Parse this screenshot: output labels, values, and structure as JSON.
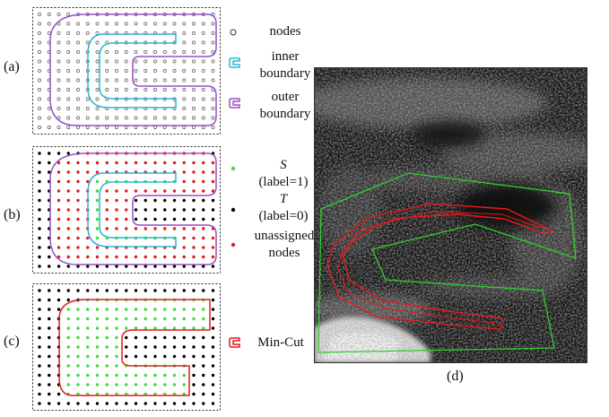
{
  "panels": {
    "a": "(a)",
    "b": "(b)",
    "c": "(c)",
    "d": "(d)"
  },
  "legend_a": {
    "nodes": "nodes",
    "inner_1": "inner",
    "inner_2": "boundary",
    "outer_1": "outer",
    "outer_2": "boundary"
  },
  "legend_b": {
    "s_symbol": "S",
    "s_label": "(label=1)",
    "t_symbol": "T",
    "t_label": "(label=0)",
    "unassigned_1": "unassigned",
    "unassigned_2": "nodes"
  },
  "legend_c": {
    "mincut": "Min-Cut"
  },
  "colors": {
    "inner_boundary": "#2bb5d6",
    "outer_boundary": "#9b4fc4",
    "source_nodes": "#3ddc3d",
    "sink_nodes": "#000000",
    "unassigned_nodes": "#e01c1c",
    "min_cut": "#e01c1c",
    "image_green": "#2fd02f",
    "image_red": "#e81a1a"
  }
}
